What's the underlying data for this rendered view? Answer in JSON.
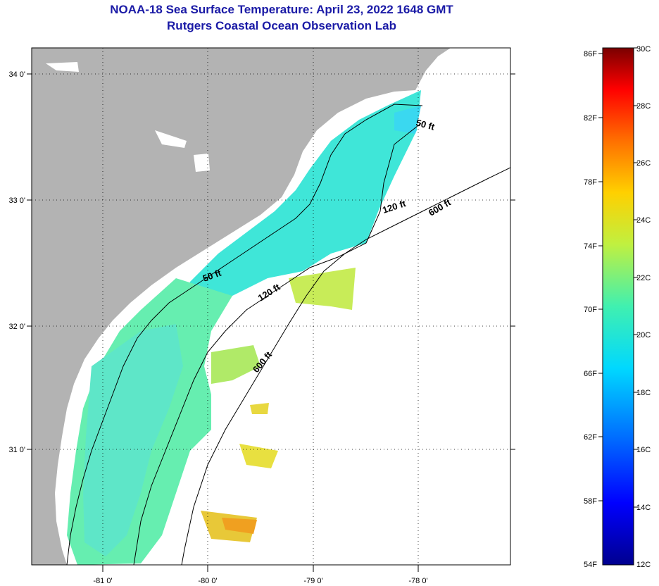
{
  "header": {
    "title": "NOAA-18 Sea Surface Temperature:  April 23, 2022 1648 GMT",
    "subtitle": "Rutgers Coastal Ocean Observation Lab"
  },
  "map": {
    "lon_labels": [
      "-81 0'",
      "-80 0'",
      "-79 0'",
      "-78 0'"
    ],
    "lat_labels": [
      "34 0'",
      "33 0'",
      "32 0'",
      "31 0'"
    ],
    "contours": [
      {
        "label": "50 ft"
      },
      {
        "label": "120 ft"
      },
      {
        "label": "600 ft"
      },
      {
        "label": "50 ft"
      },
      {
        "label": "120 ft"
      },
      {
        "label": "600 ft"
      }
    ]
  },
  "colorbar": {
    "fahrenheit": [
      "86F",
      "82F",
      "78F",
      "74F",
      "70F",
      "66F",
      "62F",
      "58F",
      "54F"
    ],
    "celsius": [
      "30C",
      "28C",
      "26C",
      "24C",
      "22C",
      "20C",
      "18C",
      "16C",
      "14C",
      "12C"
    ]
  },
  "colors": {
    "land": "#b3b3b3",
    "title": "#1a1aa6",
    "sst_cool": "#2ee0e0",
    "sst_mid": "#70f0a0",
    "sst_warm": "#f0e040",
    "sst_hot": "#f0a020"
  }
}
